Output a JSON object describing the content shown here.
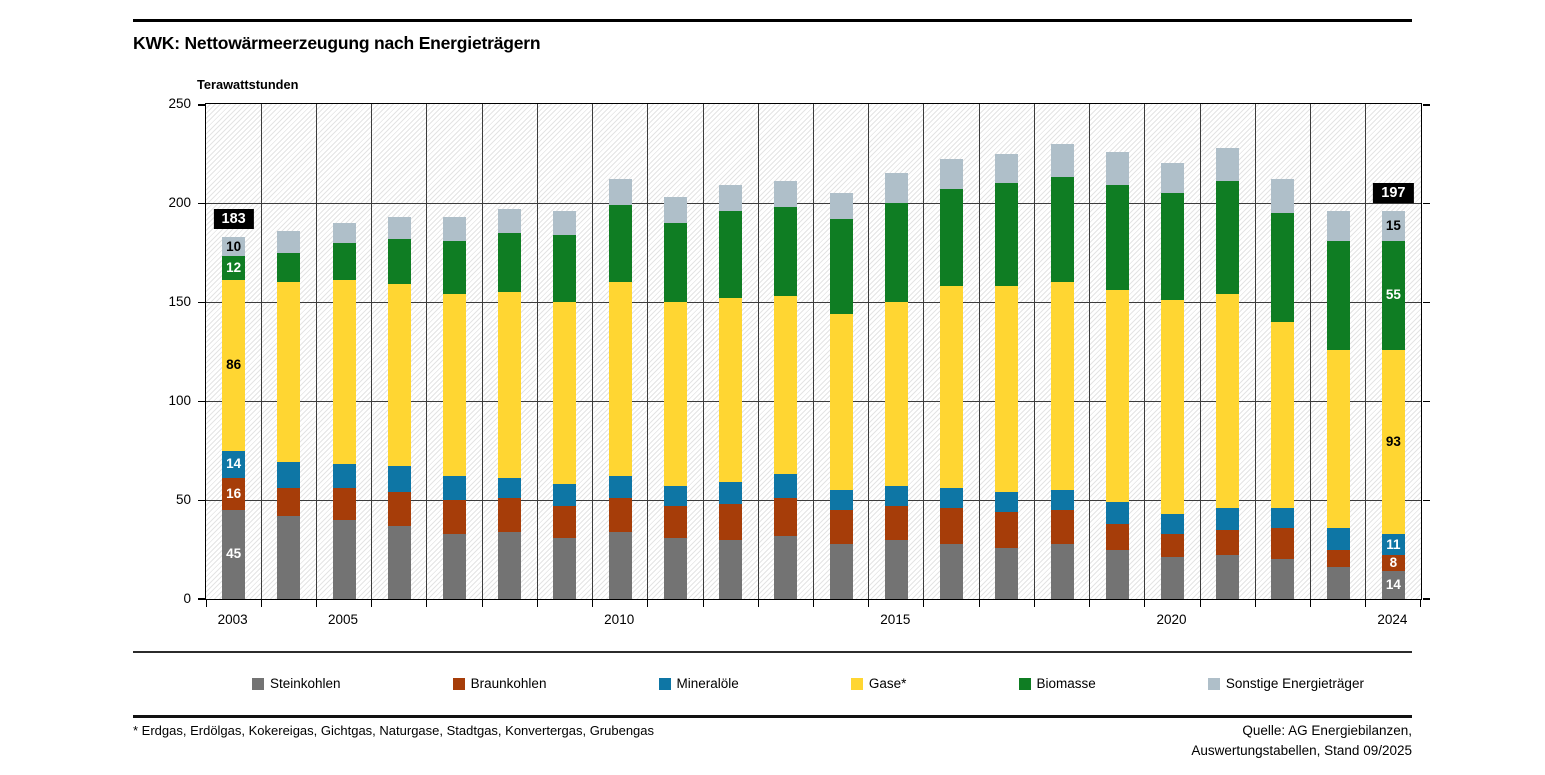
{
  "title": "KWK: Nettowärmeerzeugung nach Energieträgern",
  "axis": {
    "y_label": "Terawattstunden",
    "y_ticks": [
      0,
      50,
      100,
      150,
      200,
      250
    ]
  },
  "chart_data": {
    "type": "bar",
    "stacked": true,
    "title": "KWK: Nettowärmeerzeugung nach Energieträgern",
    "ylabel": "Terawattstunden",
    "ylim": [
      0,
      250
    ],
    "grid": true,
    "legend_position": "bottom",
    "categories": [
      2003,
      2004,
      2005,
      2006,
      2007,
      2008,
      2009,
      2010,
      2011,
      2012,
      2013,
      2014,
      2015,
      2016,
      2017,
      2018,
      2019,
      2020,
      2021,
      2022,
      2023,
      2024
    ],
    "series": [
      {
        "name": "Steinkohlen",
        "color": "#737373",
        "label_color": "#ffffff",
        "values": [
          45,
          42,
          40,
          37,
          33,
          34,
          31,
          34,
          31,
          30,
          32,
          28,
          30,
          28,
          26,
          28,
          25,
          21,
          22,
          20,
          16,
          14
        ]
      },
      {
        "name": "Braunkohlen",
        "color": "#A63D09",
        "label_color": "#ffffff",
        "values": [
          16,
          14,
          16,
          17,
          17,
          17,
          16,
          17,
          16,
          18,
          19,
          17,
          17,
          18,
          18,
          17,
          13,
          12,
          13,
          16,
          9,
          8
        ]
      },
      {
        "name": "Mineralöle",
        "color": "#0E76A5",
        "label_color": "#ffffff",
        "values": [
          14,
          13,
          12,
          13,
          12,
          10,
          11,
          11,
          10,
          11,
          12,
          10,
          10,
          10,
          10,
          10,
          11,
          10,
          11,
          10,
          11,
          11
        ]
      },
      {
        "name": "Gase*",
        "color": "#FFD632",
        "label_color": "#000000",
        "values": [
          86,
          91,
          93,
          92,
          92,
          94,
          92,
          98,
          93,
          93,
          90,
          89,
          93,
          102,
          104,
          105,
          107,
          108,
          108,
          94,
          90,
          93
        ]
      },
      {
        "name": "Biomasse",
        "color": "#0F7D23",
        "label_color": "#ffffff",
        "values": [
          12,
          15,
          19,
          23,
          27,
          30,
          34,
          39,
          40,
          44,
          45,
          48,
          50,
          49,
          52,
          53,
          53,
          54,
          57,
          55,
          55,
          55
        ]
      },
      {
        "name": "Sonstige Energieträger",
        "color": "#AFBFC9",
        "label_color": "#000000",
        "values": [
          10,
          11,
          10,
          11,
          12,
          12,
          12,
          13,
          13,
          13,
          13,
          13,
          15,
          15,
          15,
          17,
          17,
          15,
          17,
          17,
          15,
          15
        ]
      }
    ],
    "labeled_bar_indices": [
      0,
      21
    ],
    "total_labels": [
      {
        "index": 0,
        "label": "183"
      },
      {
        "index": 21,
        "label": "197"
      }
    ],
    "x_tick_labels": [
      {
        "index": 0,
        "label": "2003"
      },
      {
        "index": 2,
        "label": "2005"
      },
      {
        "index": 7,
        "label": "2010"
      },
      {
        "index": 12,
        "label": "2015"
      },
      {
        "index": 17,
        "label": "2020"
      },
      {
        "index": 21,
        "label": "2024"
      }
    ]
  },
  "footnote": "* Erdgas, Erdölgas, Kokereigas, Gichtgas, Naturgase, Stadtgas, Konvertergas, Grubengas",
  "source": {
    "line1": "Quelle: AG Energiebilanzen,",
    "line2": "Auswertungstabellen, Stand 09/2025"
  }
}
